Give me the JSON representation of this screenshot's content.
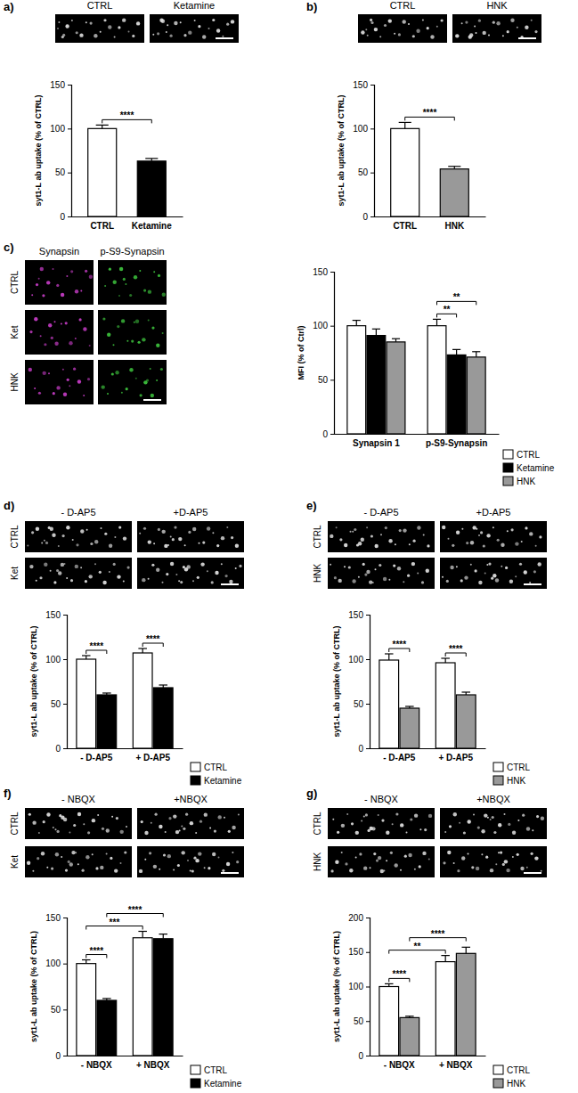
{
  "chart_data": [
    {
      "type": "bar",
      "panel_label": "a)",
      "image_columns": [
        "CTRL",
        "Ketamine"
      ],
      "y_label": "syt1-L ab uptake (% of CTRL)",
      "categories": [
        "CTRL",
        "Ketamine"
      ],
      "values": [
        100,
        63
      ],
      "errors": [
        4,
        3
      ],
      "colors": [
        "#ffffff",
        "#000000"
      ],
      "ylim": [
        0,
        150
      ],
      "yticks": [
        0,
        50,
        100,
        150
      ],
      "comparisons": [
        {
          "from": {
            "category": "CTRL"
          },
          "to": {
            "category": "Ketamine"
          },
          "label": "****"
        }
      ]
    },
    {
      "type": "bar",
      "panel_label": "b)",
      "image_columns": [
        "CTRL",
        "HNK"
      ],
      "y_label": "syt1-L ab uptake (% of CTRL)",
      "categories": [
        "CTRL",
        "HNK"
      ],
      "values": [
        100,
        54
      ],
      "errors": [
        7,
        3
      ],
      "colors": [
        "#ffffff",
        "#999999"
      ],
      "ylim": [
        0,
        150
      ],
      "yticks": [
        0,
        50,
        100,
        150
      ],
      "comparisons": [
        {
          "from": {
            "category": "CTRL"
          },
          "to": {
            "category": "HNK"
          },
          "label": "****"
        }
      ]
    },
    {
      "type": "bar",
      "panel_label": "c)",
      "image_columns": [
        "Synapsin",
        "p-S9-Synapsin"
      ],
      "image_rows": [
        "CTRL",
        "Ket",
        "HNK"
      ],
      "y_label": "MFI (% of Ctrl)",
      "categories": [
        "Synapsin 1",
        "p-S9-Synapsin"
      ],
      "series": [
        {
          "name": "CTRL",
          "color": "#ffffff",
          "values": [
            100,
            100
          ],
          "errors": [
            5,
            6
          ]
        },
        {
          "name": "Ketamine",
          "color": "#000000",
          "values": [
            91,
            73
          ],
          "errors": [
            6,
            5
          ]
        },
        {
          "name": "HNK",
          "color": "#999999",
          "values": [
            85,
            71
          ],
          "errors": [
            3,
            5
          ]
        }
      ],
      "ylim": [
        0,
        150
      ],
      "yticks": [
        0,
        50,
        100,
        150
      ],
      "legend": "bottom right",
      "comparisons": [
        {
          "from": {
            "category": "p-S9-Synapsin",
            "series": "CTRL"
          },
          "to": {
            "category": "p-S9-Synapsin",
            "series": "Ketamine"
          },
          "label": "**"
        },
        {
          "from": {
            "category": "p-S9-Synapsin",
            "series": "CTRL"
          },
          "to": {
            "category": "p-S9-Synapsin",
            "series": "HNK"
          },
          "label": "**"
        }
      ]
    },
    {
      "type": "bar",
      "panel_label": "d)",
      "image_columns": [
        "- D-AP5",
        "+D-AP5"
      ],
      "image_rows": [
        "CTRL",
        "Ket"
      ],
      "y_label": "syt1-L ab uptake (% of CTRL)",
      "categories": [
        "- D-AP5",
        "+ D-AP5"
      ],
      "series": [
        {
          "name": "CTRL",
          "color": "#ffffff",
          "values": [
            100,
            107
          ],
          "errors": [
            4,
            5
          ]
        },
        {
          "name": "Ketamine",
          "color": "#000000",
          "values": [
            60,
            68
          ],
          "errors": [
            2,
            3
          ]
        }
      ],
      "ylim": [
        0,
        150
      ],
      "yticks": [
        0,
        50,
        100,
        150
      ],
      "legend": "bottom right",
      "comparisons": [
        {
          "from": {
            "category": "- D-AP5",
            "series": "CTRL"
          },
          "to": {
            "category": "- D-AP5",
            "series": "Ketamine"
          },
          "label": "****"
        },
        {
          "from": {
            "category": "+ D-AP5",
            "series": "CTRL"
          },
          "to": {
            "category": "+ D-AP5",
            "series": "Ketamine"
          },
          "label": "****"
        }
      ]
    },
    {
      "type": "bar",
      "panel_label": "e)",
      "image_columns": [
        "- D-AP5",
        "+D-AP5"
      ],
      "image_rows": [
        "CTRL",
        "HNK"
      ],
      "y_label": "syt1-L ab uptake (% of CTRL)",
      "categories": [
        "- D-AP5",
        "+ D-AP5"
      ],
      "series": [
        {
          "name": "CTRL",
          "color": "#ffffff",
          "values": [
            99,
            96
          ],
          "errors": [
            7,
            5
          ]
        },
        {
          "name": "HNK",
          "color": "#999999",
          "values": [
            45,
            60
          ],
          "errors": [
            2,
            3
          ]
        }
      ],
      "ylim": [
        0,
        150
      ],
      "yticks": [
        0,
        50,
        100,
        150
      ],
      "legend": "bottom right",
      "comparisons": [
        {
          "from": {
            "category": "- D-AP5",
            "series": "CTRL"
          },
          "to": {
            "category": "- D-AP5",
            "series": "HNK"
          },
          "label": "****"
        },
        {
          "from": {
            "category": "+ D-AP5",
            "series": "CTRL"
          },
          "to": {
            "category": "+ D-AP5",
            "series": "HNK"
          },
          "label": "****"
        }
      ]
    },
    {
      "type": "bar",
      "panel_label": "f)",
      "image_columns": [
        "- NBQX",
        "+NBQX"
      ],
      "image_rows": [
        "CTRL",
        "Ket"
      ],
      "y_label": "syt1-L ab uptake (% of CTRL)",
      "categories": [
        "- NBQX",
        "+ NBQX"
      ],
      "series": [
        {
          "name": "CTRL",
          "color": "#ffffff",
          "values": [
            100,
            128
          ],
          "errors": [
            4,
            7
          ]
        },
        {
          "name": "Ketamine",
          "color": "#000000",
          "values": [
            60,
            127
          ],
          "errors": [
            2,
            5
          ]
        }
      ],
      "ylim": [
        0,
        150
      ],
      "yticks": [
        0,
        50,
        100,
        150
      ],
      "legend": "bottom right",
      "comparisons": [
        {
          "from": {
            "category": "- NBQX",
            "series": "CTRL"
          },
          "to": {
            "category": "- NBQX",
            "series": "Ketamine"
          },
          "label": "****"
        },
        {
          "from": {
            "category": "- NBQX",
            "series": "CTRL"
          },
          "to": {
            "category": "+ NBQX",
            "series": "CTRL"
          },
          "label": "***"
        },
        {
          "from": {
            "category": "- NBQX",
            "series": "Ketamine"
          },
          "to": {
            "category": "+ NBQX",
            "series": "Ketamine"
          },
          "label": "****"
        }
      ]
    },
    {
      "type": "bar",
      "panel_label": "g)",
      "image_columns": [
        "- NBQX",
        "+NBQX"
      ],
      "image_rows": [
        "CTRL",
        "HNK"
      ],
      "y_label": "syt1-L ab uptake (% of CTRL)",
      "categories": [
        "- NBQX",
        "+ NBQX"
      ],
      "series": [
        {
          "name": "CTRL",
          "color": "#ffffff",
          "values": [
            100,
            136
          ],
          "errors": [
            4,
            9
          ]
        },
        {
          "name": "HNK",
          "color": "#999999",
          "values": [
            55,
            148
          ],
          "errors": [
            2,
            9
          ]
        }
      ],
      "ylim": [
        0,
        200
      ],
      "yticks": [
        0,
        50,
        100,
        150,
        200
      ],
      "legend": "bottom right",
      "comparisons": [
        {
          "from": {
            "category": "- NBQX",
            "series": "CTRL"
          },
          "to": {
            "category": "- NBQX",
            "series": "HNK"
          },
          "label": "****"
        },
        {
          "from": {
            "category": "- NBQX",
            "series": "CTRL"
          },
          "to": {
            "category": "+ NBQX",
            "series": "CTRL"
          },
          "label": "**"
        },
        {
          "from": {
            "category": "- NBQX",
            "series": "HNK"
          },
          "to": {
            "category": "+ NBQX",
            "series": "HNK"
          },
          "label": "****"
        }
      ]
    }
  ]
}
